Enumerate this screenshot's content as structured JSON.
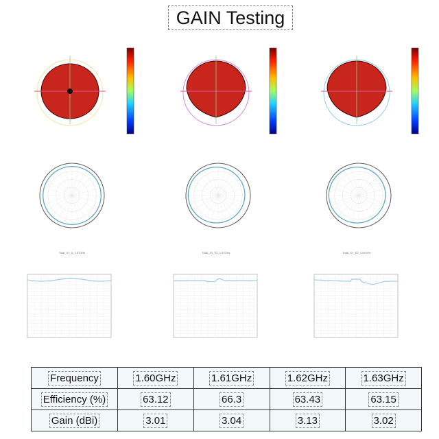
{
  "title": "GAIN Testing",
  "colors": {
    "pattern_fill": "#c8261c",
    "polar_trace": "#5fa8c8",
    "line_trace": "#9fcde0",
    "table_bg": "#f3f8fb"
  },
  "plots": [
    {
      "caption": "Total_XY_0_1.57GHz"
    },
    {
      "caption": "Total_XY_E1_1.57GHz"
    },
    {
      "caption": "Total_XY_E2_1.57GHz"
    }
  ],
  "table": {
    "rows": [
      {
        "label": "Frequency",
        "values": [
          "1.60GHz",
          "1.61GHz",
          "1.62GHz",
          "1.63GHz"
        ]
      },
      {
        "label": "Efficiency (%)",
        "values": [
          "63.12",
          "66.3",
          "63.43",
          "63.15"
        ]
      },
      {
        "label": "Gain (dBi)",
        "values": [
          "3.01",
          "3.04",
          "3.13",
          "3.02"
        ]
      }
    ]
  }
}
